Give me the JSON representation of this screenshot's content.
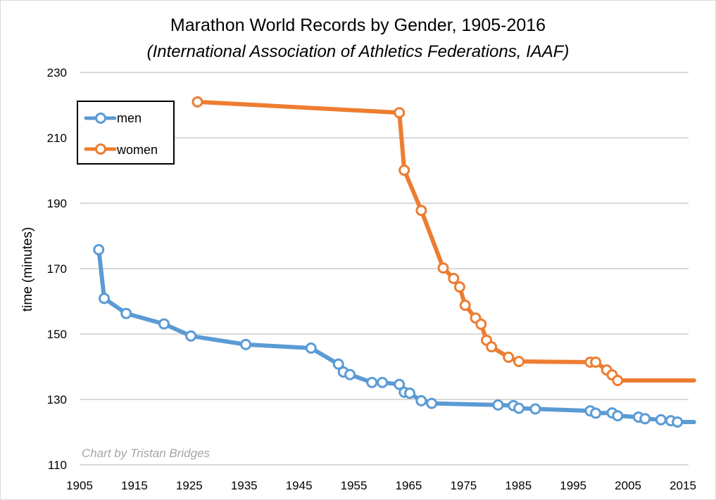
{
  "chart_data": {
    "type": "line",
    "title": "Marathon World Records by Gender, 1905-2016",
    "subtitle": "(International Association of Athletics Federations, IAAF)",
    "xlabel": "",
    "ylabel": "time (minutes)",
    "xlim": [
      1905,
      2016
    ],
    "ylim": [
      110,
      230
    ],
    "x_ticks": [
      1905,
      1915,
      1925,
      1935,
      1945,
      1955,
      1965,
      1975,
      1985,
      1995,
      2005,
      2015
    ],
    "y_ticks": [
      110,
      130,
      150,
      170,
      190,
      210,
      230
    ],
    "grid": true,
    "legend": "top-left",
    "credit": "Chart by Tristan Bridges",
    "colors": {
      "men": "#5b9bd5",
      "women": "#ed7d31",
      "grid": "#d9d9d9"
    },
    "series": [
      {
        "name": "men",
        "color": "#5b9bd5",
        "points": [
          [
            1908.5,
            175.8
          ],
          [
            1909.5,
            160.9
          ],
          [
            1913.5,
            156.3
          ],
          [
            1920.4,
            153.1
          ],
          [
            1925.3,
            149.4
          ],
          [
            1935.3,
            146.8
          ],
          [
            1947.2,
            145.7
          ],
          [
            1952.2,
            140.8
          ],
          [
            1953.1,
            138.4
          ],
          [
            1954.3,
            137.6
          ],
          [
            1958.3,
            135.2
          ],
          [
            1960.2,
            135.2
          ],
          [
            1963.3,
            134.6
          ],
          [
            1964.2,
            132.2
          ],
          [
            1965.2,
            131.9
          ],
          [
            1967.3,
            129.6
          ],
          [
            1969.2,
            128.8
          ],
          [
            1981.3,
            128.3
          ],
          [
            1984.1,
            128.1
          ],
          [
            1985.1,
            127.3
          ],
          [
            1988.1,
            127.1
          ],
          [
            1998.1,
            126.5
          ],
          [
            1999.1,
            125.8
          ],
          [
            2002.1,
            125.9
          ],
          [
            2003.1,
            125.0
          ],
          [
            2006.9,
            124.6
          ],
          [
            2008.1,
            124.1
          ],
          [
            2011.0,
            123.8
          ],
          [
            2012.8,
            123.5
          ],
          [
            2014.0,
            123.1
          ]
        ],
        "line_end": [
          2016,
          123.1
        ]
      },
      {
        "name": "women",
        "color": "#ed7d31",
        "points": [
          [
            1926.5,
            221.0
          ],
          [
            1963.3,
            217.7
          ],
          [
            1964.2,
            200.1
          ],
          [
            1967.3,
            187.8
          ],
          [
            1971.3,
            170.2
          ],
          [
            1973.2,
            167.0
          ],
          [
            1974.3,
            164.4
          ],
          [
            1975.3,
            158.8
          ],
          [
            1977.2,
            154.9
          ],
          [
            1978.2,
            153.0
          ],
          [
            1979.2,
            148.1
          ],
          [
            1980.1,
            146.1
          ],
          [
            1983.2,
            142.9
          ],
          [
            1985.1,
            141.6
          ],
          [
            1998.1,
            141.4
          ],
          [
            1999.1,
            141.4
          ],
          [
            2001.1,
            139.0
          ],
          [
            2002.1,
            137.5
          ],
          [
            2003.1,
            135.8
          ]
        ],
        "line_end": [
          2016,
          135.8
        ]
      }
    ]
  }
}
